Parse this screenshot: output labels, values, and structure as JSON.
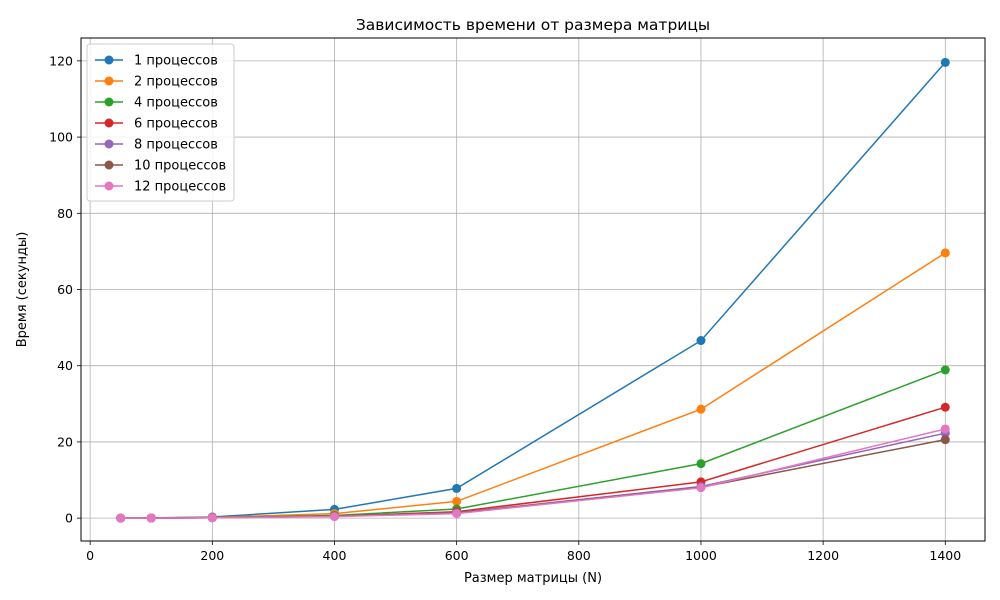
{
  "chart_data": {
    "type": "line",
    "title": "Зависимость времени от размера матрицы",
    "xlabel": "Размер матрицы (N)",
    "ylabel": "Время (секунды)",
    "xlim": [
      -15,
      1465
    ],
    "ylim": [
      -6,
      126
    ],
    "x_ticks": [
      0,
      200,
      400,
      600,
      800,
      1000,
      1200,
      1400
    ],
    "y_ticks": [
      0,
      20,
      40,
      60,
      80,
      100,
      120
    ],
    "grid": true,
    "legend_position": "top-left",
    "x": [
      50,
      100,
      200,
      400,
      600,
      1000,
      1400
    ],
    "series": [
      {
        "name": "1 процессов",
        "color": "#1f77b4",
        "values": [
          0.01,
          0.05,
          0.3,
          2.3,
          7.8,
          46.6,
          119.6
        ]
      },
      {
        "name": "2 процессов",
        "color": "#ff7f0e",
        "values": [
          0.01,
          0.03,
          0.2,
          1.2,
          4.4,
          28.6,
          69.6
        ]
      },
      {
        "name": "4 процессов",
        "color": "#2ca02c",
        "values": [
          0.01,
          0.02,
          0.15,
          0.7,
          2.4,
          14.3,
          38.9
        ]
      },
      {
        "name": "6 процессов",
        "color": "#d62728",
        "values": [
          0.01,
          0.02,
          0.12,
          0.5,
          1.7,
          9.5,
          29.1
        ]
      },
      {
        "name": "8 процессов",
        "color": "#9467bd",
        "values": [
          0.01,
          0.02,
          0.1,
          0.5,
          1.4,
          8.3,
          22.3
        ]
      },
      {
        "name": "10 процессов",
        "color": "#8c564b",
        "values": [
          0.01,
          0.02,
          0.1,
          0.5,
          1.3,
          8.1,
          20.6
        ]
      },
      {
        "name": "12 процессов",
        "color": "#e377c2",
        "values": [
          0.01,
          0.02,
          0.1,
          0.4,
          1.2,
          8.0,
          23.4
        ]
      }
    ]
  }
}
